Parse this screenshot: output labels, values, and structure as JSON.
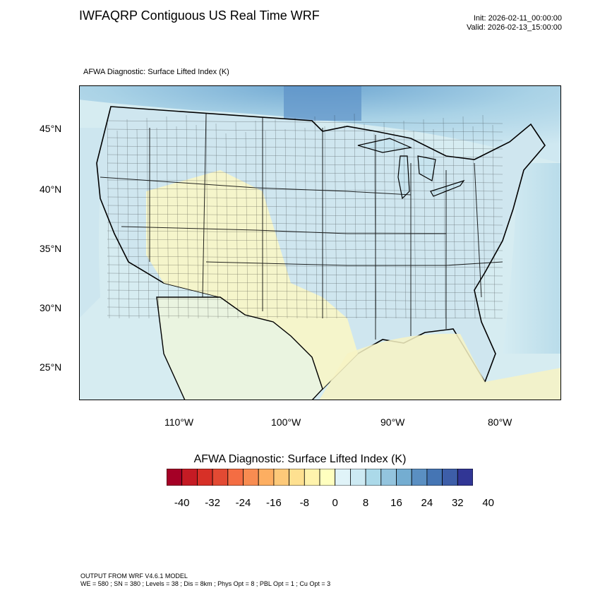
{
  "header": {
    "title": "IWFAQRP Contiguous US Real Time WRF",
    "init": "Init: 2026-02-11_00:00:00",
    "valid": "Valid: 2026-02-13_15:00:00"
  },
  "map": {
    "field_label": "AFWA Diagnostic: Surface Lifted Index   (K)",
    "lat_labels": [
      "45°N",
      "40°N",
      "35°N",
      "30°N",
      "25°N"
    ],
    "lon_labels": [
      "110°W",
      "100°W",
      "90°W",
      "80°W"
    ]
  },
  "colorbar": {
    "title": "AFWA Diagnostic: Surface Lifted Index  (K)",
    "tick_labels": [
      "-40",
      "-32",
      "-24",
      "-16",
      "-8",
      "0",
      "8",
      "16",
      "24",
      "32",
      "40"
    ],
    "colors": [
      "#a50026",
      "#c51b24",
      "#d73027",
      "#e34a33",
      "#f46d43",
      "#f88c51",
      "#fdae61",
      "#fdc979",
      "#fee090",
      "#fff3ac",
      "#ffffbf",
      "#e0f3f8",
      "#cdeaf3",
      "#abd9e9",
      "#93c4de",
      "#74add1",
      "#5a8fc2",
      "#4575b4",
      "#3d5ea8",
      "#313695"
    ]
  },
  "footer": {
    "line1": "OUTPUT FROM WRF V4.6.1 MODEL",
    "line2": "WE = 580 ; SN = 380 ; Levels = 38 ; Dis = 8km ; Phys Opt = 8 ; PBL Opt = 1 ; Cu Opt = 3"
  }
}
